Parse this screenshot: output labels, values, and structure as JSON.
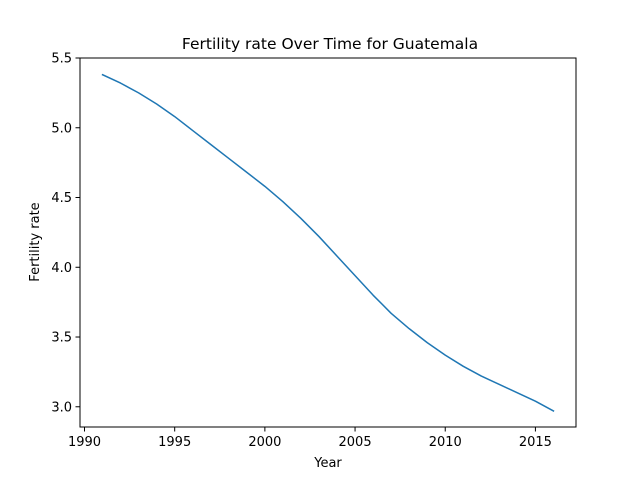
{
  "chart_data": {
    "type": "line",
    "title": "Fertility rate Over Time for Guatemala",
    "xlabel": "Year",
    "ylabel": "Fertility rate",
    "xlim": [
      1989.75,
      2017.25
    ],
    "ylim": [
      2.855,
      5.5
    ],
    "xticks": [
      1990,
      1995,
      2000,
      2005,
      2010,
      2015
    ],
    "yticks": [
      3.0,
      3.5,
      4.0,
      4.5,
      5.0,
      5.5
    ],
    "xtick_labels": [
      "1990",
      "1995",
      "2000",
      "2005",
      "2010",
      "2015"
    ],
    "ytick_labels": [
      "3.0",
      "3.5",
      "4.0",
      "4.5",
      "5.0",
      "5.5"
    ],
    "grid": false,
    "legend": false,
    "line_color": "#1f77b4",
    "series": [
      {
        "x": [
          1991,
          1992,
          1993,
          1994,
          1995,
          1996,
          1997,
          1998,
          1999,
          2000,
          2001,
          2002,
          2003,
          2004,
          2005,
          2006,
          2007,
          2008,
          2009,
          2010,
          2011,
          2012,
          2013,
          2014,
          2015,
          2016
        ],
        "y": [
          5.38,
          5.32,
          5.25,
          5.17,
          5.08,
          4.98,
          4.88,
          4.78,
          4.68,
          4.58,
          4.47,
          4.35,
          4.22,
          4.08,
          3.94,
          3.8,
          3.67,
          3.56,
          3.46,
          3.37,
          3.29,
          3.22,
          3.16,
          3.1,
          3.04,
          2.97
        ]
      }
    ]
  }
}
